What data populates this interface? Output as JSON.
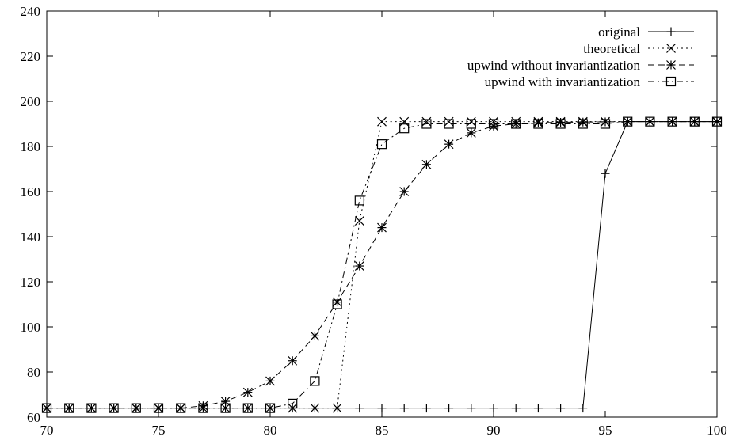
{
  "chart_data": {
    "type": "line",
    "title": "",
    "xlabel": "",
    "ylabel": "",
    "xlim": [
      70,
      100
    ],
    "ylim": [
      60,
      240
    ],
    "xticks": [
      70,
      75,
      80,
      85,
      90,
      95,
      100
    ],
    "yticks": [
      60,
      80,
      100,
      120,
      140,
      160,
      180,
      200,
      220,
      240
    ],
    "grid": false,
    "legend_position": "top-right",
    "series": [
      {
        "name": "original",
        "line_style": "solid",
        "marker": "plus",
        "x": [
          70,
          71,
          72,
          73,
          74,
          75,
          76,
          77,
          78,
          79,
          80,
          81,
          82,
          83,
          84,
          85,
          86,
          87,
          88,
          89,
          90,
          91,
          92,
          93,
          94,
          95,
          96,
          97,
          98,
          99,
          100
        ],
        "y": [
          64,
          64,
          64,
          64,
          64,
          64,
          64,
          64,
          64,
          64,
          64,
          64,
          64,
          64,
          64,
          64,
          64,
          64,
          64,
          64,
          64,
          64,
          64,
          64,
          64,
          168,
          191,
          191,
          191,
          191,
          191
        ]
      },
      {
        "name": "theoretical",
        "line_style": "dotted",
        "marker": "cross",
        "x": [
          70,
          71,
          72,
          73,
          74,
          75,
          76,
          77,
          78,
          79,
          80,
          81,
          82,
          83,
          84,
          85,
          86,
          87,
          88,
          89,
          90,
          91,
          92,
          93,
          94,
          95,
          96,
          97,
          98,
          99,
          100
        ],
        "y": [
          64,
          64,
          64,
          64,
          64,
          64,
          64,
          64,
          64,
          64,
          64,
          64,
          64,
          64,
          147,
          191,
          191,
          191,
          191,
          191,
          191,
          191,
          191,
          191,
          191,
          191,
          191,
          191,
          191,
          191,
          191
        ]
      },
      {
        "name": "upwind without invariantization",
        "line_style": "dashed",
        "marker": "star",
        "x": [
          70,
          71,
          72,
          73,
          74,
          75,
          76,
          77,
          78,
          79,
          80,
          81,
          82,
          83,
          84,
          85,
          86,
          87,
          88,
          89,
          90,
          91,
          92,
          93,
          94,
          95,
          96,
          97,
          98,
          99,
          100
        ],
        "y": [
          64,
          64,
          64,
          64,
          64,
          64,
          64,
          65,
          67,
          71,
          76,
          85,
          96,
          111,
          127,
          144,
          160,
          172,
          181,
          186,
          189,
          190,
          190.5,
          190.7,
          190.8,
          190.9,
          191,
          191,
          191,
          191,
          191
        ]
      },
      {
        "name": "upwind with invariantization",
        "line_style": "dashdot",
        "marker": "square",
        "x": [
          70,
          71,
          72,
          73,
          74,
          75,
          76,
          77,
          78,
          79,
          80,
          81,
          82,
          83,
          84,
          85,
          86,
          87,
          88,
          89,
          90,
          91,
          92,
          93,
          94,
          95,
          96,
          97,
          98,
          99,
          100
        ],
        "y": [
          64,
          64,
          64,
          64,
          64,
          64,
          64,
          64,
          64,
          64,
          64,
          66,
          76,
          110,
          156,
          181,
          188,
          190,
          190,
          190,
          190,
          190,
          190,
          190,
          190,
          190,
          191,
          191,
          191,
          191,
          191
        ]
      }
    ]
  }
}
